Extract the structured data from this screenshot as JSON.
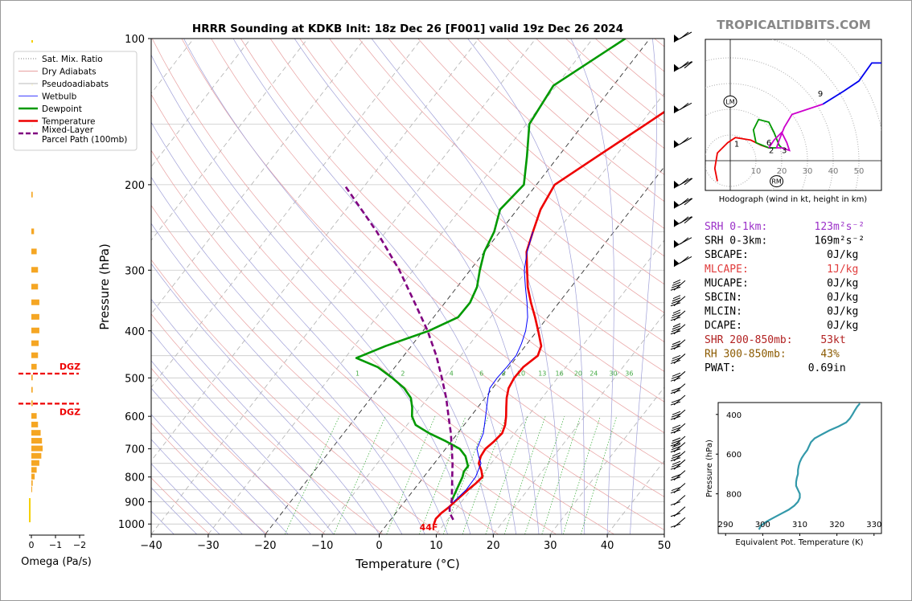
{
  "title": "HRRR Sounding at KDKB Init: 18z Dec 26 [F001] valid 19z Dec 26 2024",
  "watermark": "TROPICALTIDBITS.COM",
  "chart_data": {
    "type": "line",
    "xlabel": "Temperature (°C)",
    "ylabel": "Pressure (hPa)",
    "xlim": [
      -40,
      50
    ],
    "ylim": [
      1050,
      100
    ],
    "yscale": "log",
    "xticks": [
      "−40",
      "−30",
      "−20",
      "−10",
      "0",
      "10",
      "20",
      "30",
      "40",
      "50"
    ],
    "yticks": [
      "100",
      "200",
      "300",
      "400",
      "500",
      "600",
      "700",
      "800",
      "900",
      "1000"
    ],
    "legend": [
      {
        "label": "Sat. Mix. Ratio",
        "color": "#555555",
        "style": "dotted"
      },
      {
        "label": "Dry Adiabats",
        "color": "#e08080",
        "style": "solid"
      },
      {
        "label": "Pseudoadiabats",
        "color": "#a0a0a0",
        "style": "solid"
      },
      {
        "label": "Wetbulb",
        "color": "#0000ff",
        "style": "solid"
      },
      {
        "label": "Dewpoint",
        "color": "#009900",
        "style": "solid"
      },
      {
        "label": "Temperature",
        "color": "#ee0000",
        "style": "solid"
      },
      {
        "label": "Mixed-Layer Parcel Path (100mb)",
        "color": "#800080",
        "style": "dashed"
      }
    ],
    "surface_label": "44F",
    "mixing_ratio_labels": [
      "1",
      "2",
      "4",
      "6",
      "8",
      "10",
      "13",
      "16",
      "20",
      "24",
      "30",
      "36"
    ],
    "series": [
      {
        "name": "Temperature",
        "color": "#ee0000",
        "points": [
          [
            1000,
            8.2
          ],
          [
            975,
            7.8
          ],
          [
            950,
            8.0
          ],
          [
            925,
            8.5
          ],
          [
            900,
            8.8
          ],
          [
            850,
            9.5
          ],
          [
            825,
            10.0
          ],
          [
            800,
            10.3
          ],
          [
            775,
            9.2
          ],
          [
            750,
            7.8
          ],
          [
            725,
            7.2
          ],
          [
            700,
            7.0
          ],
          [
            675,
            7.5
          ],
          [
            650,
            7.8
          ],
          [
            625,
            7.2
          ],
          [
            600,
            6.2
          ],
          [
            575,
            5.0
          ],
          [
            550,
            3.8
          ],
          [
            525,
            2.8
          ],
          [
            500,
            2.4
          ],
          [
            475,
            2.5
          ],
          [
            450,
            3.5
          ],
          [
            430,
            2.8
          ],
          [
            400,
            0.2
          ],
          [
            375,
            -2.2
          ],
          [
            350,
            -4.9
          ],
          [
            325,
            -7.6
          ],
          [
            300,
            -10.0
          ],
          [
            275,
            -12.6
          ],
          [
            250,
            -14.2
          ],
          [
            225,
            -15.9
          ],
          [
            200,
            -16.8
          ],
          [
            175,
            -13.2
          ],
          [
            150,
            -9.0
          ],
          [
            125,
            -4.2
          ],
          [
            100,
            -0.5
          ]
        ]
      },
      {
        "name": "Dewpoint",
        "color": "#009900",
        "points": [
          [
            900,
            8.2
          ],
          [
            850,
            7.5
          ],
          [
            800,
            6.8
          ],
          [
            780,
            6.3
          ],
          [
            760,
            6.3
          ],
          [
            725,
            4.5
          ],
          [
            700,
            2.5
          ],
          [
            675,
            -1.0
          ],
          [
            650,
            -5.0
          ],
          [
            625,
            -8.5
          ],
          [
            600,
            -10.3
          ],
          [
            575,
            -11.5
          ],
          [
            550,
            -13.0
          ],
          [
            525,
            -15.5
          ],
          [
            500,
            -19.0
          ],
          [
            475,
            -23.0
          ],
          [
            455,
            -28.0
          ],
          [
            430,
            -24.5
          ],
          [
            400,
            -19.0
          ],
          [
            375,
            -15.7
          ],
          [
            350,
            -15.6
          ],
          [
            325,
            -16.5
          ],
          [
            300,
            -18.3
          ],
          [
            275,
            -20.0
          ],
          [
            250,
            -21.0
          ],
          [
            225,
            -23.0
          ],
          [
            200,
            -22.2
          ],
          [
            175,
            -25.5
          ],
          [
            150,
            -29.5
          ],
          [
            125,
            -30.5
          ],
          [
            100,
            -24.3
          ]
        ]
      },
      {
        "name": "Wetbulb",
        "color": "#0000ff",
        "points": [
          [
            900,
            8.6
          ],
          [
            850,
            9.2
          ],
          [
            800,
            9.1
          ],
          [
            750,
            8.2
          ],
          [
            725,
            6.8
          ],
          [
            700,
            5.5
          ],
          [
            650,
            4.5
          ],
          [
            600,
            2.6
          ],
          [
            550,
            0.5
          ],
          [
            525,
            -0.5
          ],
          [
            500,
            -0.6
          ],
          [
            475,
            -0.4
          ],
          [
            450,
            -0.3
          ],
          [
            425,
            -1.0
          ],
          [
            400,
            -2.0
          ],
          [
            375,
            -3.5
          ],
          [
            350,
            -5.6
          ],
          [
            325,
            -8.0
          ],
          [
            300,
            -10.5
          ],
          [
            275,
            -12.5
          ],
          [
            250,
            -14.2
          ]
        ]
      },
      {
        "name": "Mixed-Layer Parcel Path (100mb)",
        "color": "#800080",
        "points": [
          [
            980,
            11.0
          ],
          [
            950,
            9.5
          ],
          [
            925,
            8.7
          ],
          [
            900,
            8.3
          ],
          [
            850,
            6.7
          ],
          [
            800,
            5.0
          ],
          [
            750,
            3.2
          ],
          [
            700,
            1.1
          ],
          [
            650,
            -1.2
          ],
          [
            600,
            -3.9
          ],
          [
            550,
            -6.8
          ],
          [
            500,
            -10.3
          ],
          [
            450,
            -14.3
          ],
          [
            400,
            -19.2
          ],
          [
            350,
            -25.3
          ],
          [
            300,
            -32.4
          ],
          [
            250,
            -41.6
          ],
          [
            200,
            -53.7
          ]
        ]
      }
    ],
    "omega": {
      "xlabel": "Omega (Pa/s)",
      "xticks": [
        "0",
        "−1",
        "−2"
      ],
      "dgz_label": "DGZ",
      "dgz_bounds": [
        490,
        565
      ],
      "bars": [
        [
          210,
          0.1
        ],
        [
          250,
          0.2
        ],
        [
          275,
          0.4
        ],
        [
          300,
          0.5
        ],
        [
          325,
          0.5
        ],
        [
          350,
          0.6
        ],
        [
          375,
          0.6
        ],
        [
          400,
          0.6
        ],
        [
          425,
          0.55
        ],
        [
          450,
          0.5
        ],
        [
          475,
          0.4
        ],
        [
          500,
          0.1
        ],
        [
          530,
          0.1
        ],
        [
          565,
          0.1
        ],
        [
          600,
          0.4
        ],
        [
          625,
          0.5
        ],
        [
          650,
          0.7
        ],
        [
          675,
          0.8
        ],
        [
          700,
          0.85
        ],
        [
          725,
          0.75
        ],
        [
          750,
          0.6
        ],
        [
          775,
          0.4
        ],
        [
          800,
          0.25
        ],
        [
          825,
          0.1
        ],
        [
          850,
          0.05
        ]
      ]
    },
    "winds": [
      {
        "p": 100,
        "flags": 1,
        "barbs": 1
      },
      {
        "p": 115,
        "flags": 1,
        "barbs": 2
      },
      {
        "p": 140,
        "flags": 1,
        "barbs": 1
      },
      {
        "p": 165,
        "flags": 1,
        "barbs": 1
      },
      {
        "p": 200,
        "flags": 1,
        "barbs": 2
      },
      {
        "p": 220,
        "flags": 1,
        "barbs": 2
      },
      {
        "p": 240,
        "flags": 1,
        "barbs": 2
      },
      {
        "p": 265,
        "flags": 1,
        "barbs": 1
      },
      {
        "p": 290,
        "flags": 1,
        "barbs": 1
      },
      {
        "p": 325,
        "flags": 0,
        "barbs": 4
      },
      {
        "p": 350,
        "flags": 0,
        "barbs": 4
      },
      {
        "p": 375,
        "flags": 0,
        "barbs": 4
      },
      {
        "p": 400,
        "flags": 0,
        "barbs": 4
      },
      {
        "p": 430,
        "flags": 0,
        "barbs": 3
      },
      {
        "p": 460,
        "flags": 0,
        "barbs": 3
      },
      {
        "p": 500,
        "flags": 0,
        "barbs": 3
      },
      {
        "p": 530,
        "flags": 0,
        "barbs": 2
      },
      {
        "p": 560,
        "flags": 0,
        "barbs": 2
      },
      {
        "p": 600,
        "flags": 0,
        "barbs": 3
      },
      {
        "p": 640,
        "flags": 0,
        "barbs": 3
      },
      {
        "p": 680,
        "flags": 0,
        "barbs": 3
      },
      {
        "p": 700,
        "flags": 0,
        "barbs": 3
      },
      {
        "p": 730,
        "flags": 0,
        "barbs": 3
      },
      {
        "p": 760,
        "flags": 0,
        "barbs": 3
      },
      {
        "p": 800,
        "flags": 0,
        "barbs": 2
      },
      {
        "p": 850,
        "flags": 0,
        "barbs": 2
      },
      {
        "p": 900,
        "flags": 0,
        "barbs": 1
      },
      {
        "p": 950,
        "flags": 0,
        "barbs": 1
      },
      {
        "p": 1000,
        "flags": 0,
        "barbs": 1
      }
    ]
  },
  "hodograph": {
    "caption": "Hodograph (wind in kt, height in km)",
    "ring_labels": [
      "10",
      "20",
      "30",
      "40",
      "50"
    ],
    "markers": [
      "LM",
      "RM"
    ],
    "height_labels": [
      {
        "t": "1",
        "u": 2.5,
        "v": 5.5
      },
      {
        "t": "2",
        "u": 16,
        "v": 3
      },
      {
        "t": "3",
        "u": 21,
        "v": 3
      },
      {
        "t": "6",
        "u": 15,
        "v": 6
      },
      {
        "t": "9",
        "u": 35,
        "v": 25
      }
    ],
    "segments": [
      {
        "color": "#ee0000",
        "points": [
          [
            -5,
            -8
          ],
          [
            -6,
            -3
          ],
          [
            -5,
            3
          ],
          [
            -1,
            7
          ],
          [
            2,
            9
          ],
          [
            8,
            8
          ],
          [
            12,
            6
          ],
          [
            15,
            5
          ]
        ]
      },
      {
        "color": "#009900",
        "points": [
          [
            15,
            5
          ],
          [
            18,
            5
          ],
          [
            15,
            5
          ],
          [
            10,
            7
          ],
          [
            9,
            12
          ],
          [
            11,
            16
          ],
          [
            15,
            15
          ],
          [
            17,
            11
          ],
          [
            19,
            6
          ],
          [
            20,
            5
          ]
        ]
      },
      {
        "color": "#cc00cc",
        "points": [
          [
            15,
            5
          ],
          [
            17,
            8
          ],
          [
            20,
            11
          ],
          [
            22,
            7
          ],
          [
            23,
            4
          ],
          [
            20,
            5
          ],
          [
            18,
            5
          ],
          [
            19,
            8
          ],
          [
            21,
            13
          ],
          [
            24,
            18
          ],
          [
            30,
            20
          ],
          [
            36,
            22
          ]
        ]
      },
      {
        "color": "#0000ee",
        "points": [
          [
            36,
            22
          ],
          [
            44,
            27
          ],
          [
            50,
            31
          ],
          [
            55,
            38
          ],
          [
            60,
            38
          ],
          [
            63,
            25
          ]
        ]
      }
    ],
    "lm": [
      0,
      23
    ],
    "rm": [
      18,
      -8
    ]
  },
  "indices": [
    {
      "label": "SRH 0-1km:",
      "value": "123",
      "unit": " m²s⁻²",
      "color": "#9b30c8"
    },
    {
      "label": "SRH 0-3km:",
      "value": "169",
      "unit": " m²s⁻²",
      "color": "#000000"
    },
    {
      "label": "SBCAPE:",
      "value": "0",
      "unit": " J/kg",
      "color": "#000000"
    },
    {
      "label": "MLCAPE:",
      "value": "1",
      "unit": " J/kg",
      "color": "#e03c3c"
    },
    {
      "label": "MUCAPE:",
      "value": "0",
      "unit": " J/kg",
      "color": "#000000"
    },
    {
      "label": "SBCIN:",
      "value": "0",
      "unit": " J/kg",
      "color": "#000000"
    },
    {
      "label": "MLCIN:",
      "value": "0",
      "unit": " J/kg",
      "color": "#000000"
    },
    {
      "label": "DCAPE:",
      "value": "0",
      "unit": " J/kg",
      "color": "#000000"
    },
    {
      "label": "SHR 200-850mb:",
      "value": "53",
      "unit": " kt",
      "color": "#b22222"
    },
    {
      "label": "RH 300-850mb:",
      "value": "43",
      "unit": " %",
      "color": "#8b5a00"
    },
    {
      "label": "PWAT:",
      "value": "0.69",
      "unit": " in",
      "color": "#000000"
    }
  ],
  "theta_e": {
    "type": "line",
    "xlabel": "Equivalent Pot. Temperature (K)",
    "ylabel": "Pressure (hPa)",
    "xticks": [
      "290",
      "300",
      "310",
      "320",
      "330"
    ],
    "yticks": [
      "400",
      "600",
      "800"
    ],
    "xlim": [
      288,
      332
    ],
    "ylim": [
      1000,
      340
    ],
    "color": "#3399aa",
    "points": [
      [
        980,
        299.0
      ],
      [
        960,
        299.5
      ],
      [
        940,
        301
      ],
      [
        920,
        303
      ],
      [
        900,
        305
      ],
      [
        880,
        307
      ],
      [
        860,
        308.5
      ],
      [
        840,
        309.5
      ],
      [
        820,
        310
      ],
      [
        800,
        310
      ],
      [
        780,
        309.5
      ],
      [
        760,
        309
      ],
      [
        740,
        309
      ],
      [
        720,
        309.2
      ],
      [
        700,
        309.5
      ],
      [
        680,
        309.5
      ],
      [
        660,
        309.7
      ],
      [
        640,
        310
      ],
      [
        620,
        310.5
      ],
      [
        600,
        311.2
      ],
      [
        580,
        312
      ],
      [
        560,
        312.5
      ],
      [
        540,
        313
      ],
      [
        520,
        314
      ],
      [
        500,
        316
      ],
      [
        480,
        318
      ],
      [
        460,
        320.5
      ],
      [
        440,
        322.5
      ],
      [
        420,
        323.5
      ],
      [
        400,
        324.2
      ],
      [
        380,
        324.8
      ],
      [
        360,
        325.5
      ],
      [
        345,
        326.2
      ]
    ]
  }
}
